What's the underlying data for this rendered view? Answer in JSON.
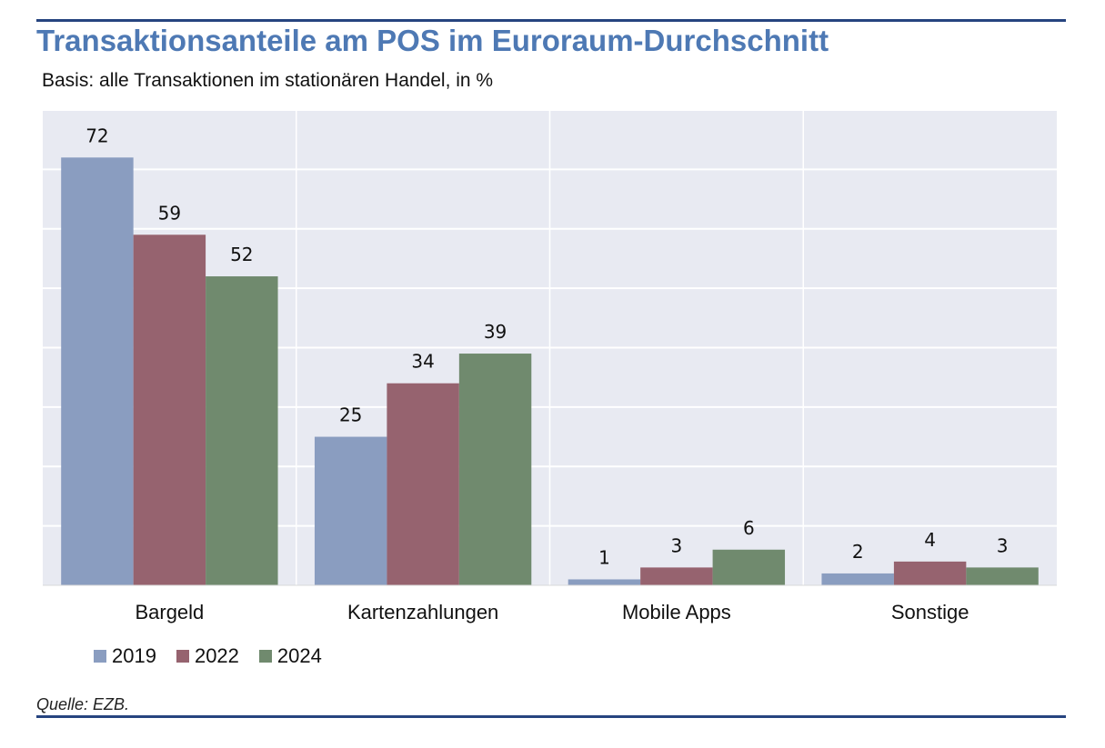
{
  "header": {
    "title": "Transaktionsanteile am POS im Euroraum-Durchschnitt",
    "subtitle": "Basis: alle Transaktionen im stationären Handel, in %"
  },
  "footer": {
    "source": "Quelle: EZB."
  },
  "colors": {
    "rule": "#26447f",
    "title": "#4e79b4",
    "plot_bg": "#e8eaf2",
    "grid": "#ffffff"
  },
  "chart_data": {
    "type": "bar",
    "title": "Transaktionsanteile am POS im Euroraum-Durchschnitt",
    "subtitle": "Basis: alle Transaktionen im stationären Handel, in %",
    "categories": [
      "Bargeld",
      "Kartenzahlungen",
      "Mobile Apps",
      "Sonstige"
    ],
    "series": [
      {
        "name": "2019",
        "color": "#8a9dc0",
        "values": [
          72,
          25,
          1,
          2
        ]
      },
      {
        "name": "2022",
        "color": "#96636f",
        "values": [
          59,
          34,
          3,
          4
        ]
      },
      {
        "name": "2024",
        "color": "#708a6e",
        "values": [
          52,
          39,
          6,
          3
        ]
      }
    ],
    "ylim": [
      0,
      80
    ],
    "grid": true,
    "legend": "bottom-left",
    "data_labels": true
  }
}
